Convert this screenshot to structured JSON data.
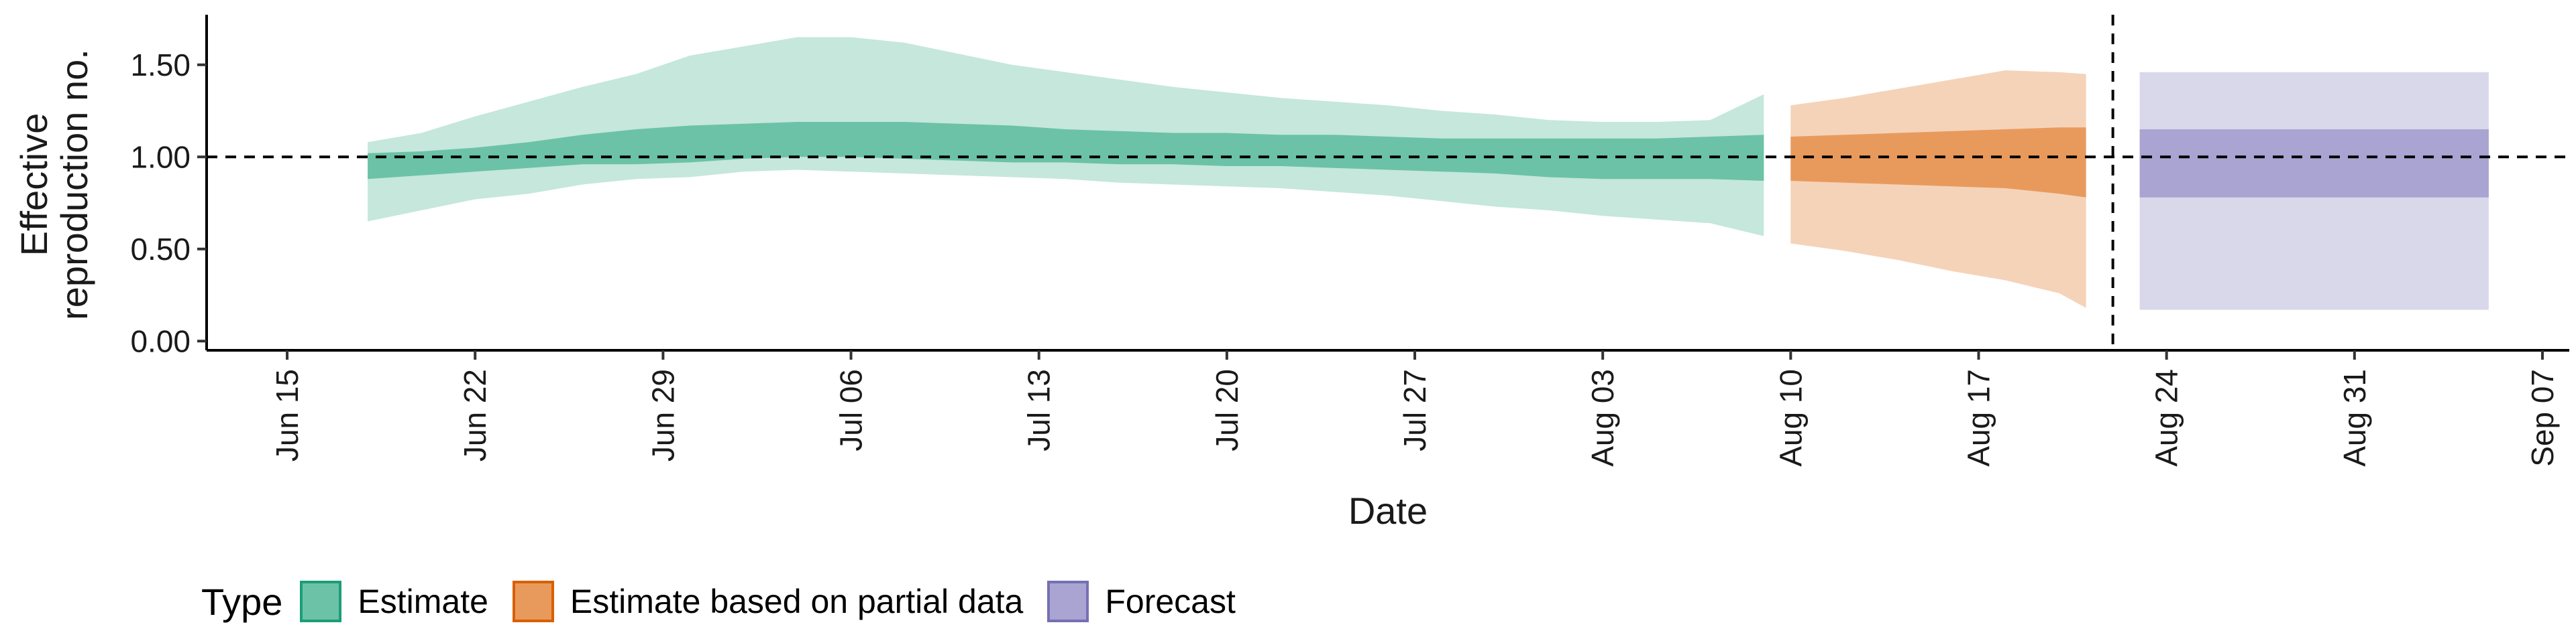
{
  "chart_data": {
    "type": "area",
    "xlabel": "Date",
    "ylabel": "Effective\nreproduction no.",
    "ylim": [
      -0.05,
      1.75
    ],
    "xlim": [
      "2020-06-12",
      "2020-09-08"
    ],
    "x_ticks": [
      "2020-06-15",
      "2020-06-22",
      "2020-06-29",
      "2020-07-06",
      "2020-07-13",
      "2020-07-20",
      "2020-07-27",
      "2020-08-03",
      "2020-08-10",
      "2020-08-17",
      "2020-08-24",
      "2020-08-31",
      "2020-09-07"
    ],
    "x_tick_labels": [
      "Jun 15",
      "Jun 22",
      "Jun 29",
      "Jul 06",
      "Jul 13",
      "Jul 20",
      "Jul 27",
      "Aug 03",
      "Aug 10",
      "Aug 17",
      "Aug 24",
      "Aug 31",
      "Sep 07"
    ],
    "y_ticks": [
      0,
      0.5,
      1,
      1.5
    ],
    "y_tick_labels": [
      "0.00",
      "0.50",
      "1.00",
      "1.50"
    ],
    "reference_lines": {
      "horizontal_y": 1.0,
      "vertical_x": "2020-08-22"
    },
    "grid": false,
    "legend": {
      "title": "Type",
      "position": "bottom",
      "entries": [
        {
          "label": "Estimate",
          "fill": "#6cc2a6",
          "border": "#1b9e77"
        },
        {
          "label": "Estimate based on partial data",
          "fill": "#e89a5d",
          "border": "#d95f02"
        },
        {
          "label": "Forecast",
          "fill": "#a9a4d2",
          "border": "#7570b3"
        }
      ]
    },
    "series": [
      {
        "name": "Estimate",
        "color": "#1b9e77",
        "inner_fill": "#6cc2a6",
        "outer_fill": "#c5e7dc",
        "x": [
          "2020-06-18",
          "2020-06-20",
          "2020-06-22",
          "2020-06-24",
          "2020-06-26",
          "2020-06-28",
          "2020-06-30",
          "2020-07-02",
          "2020-07-04",
          "2020-07-06",
          "2020-07-08",
          "2020-07-10",
          "2020-07-12",
          "2020-07-14",
          "2020-07-16",
          "2020-07-18",
          "2020-07-20",
          "2020-07-22",
          "2020-07-24",
          "2020-07-26",
          "2020-07-28",
          "2020-07-30",
          "2020-08-01",
          "2020-08-03",
          "2020-08-05",
          "2020-08-07",
          "2020-08-09"
        ],
        "outer_lower": [
          0.65,
          0.71,
          0.77,
          0.8,
          0.85,
          0.88,
          0.89,
          0.92,
          0.93,
          0.92,
          0.91,
          0.9,
          0.89,
          0.88,
          0.86,
          0.85,
          0.84,
          0.83,
          0.81,
          0.79,
          0.76,
          0.73,
          0.71,
          0.68,
          0.66,
          0.64,
          0.57
        ],
        "outer_upper": [
          1.08,
          1.13,
          1.22,
          1.3,
          1.38,
          1.45,
          1.55,
          1.6,
          1.65,
          1.65,
          1.62,
          1.56,
          1.5,
          1.46,
          1.42,
          1.38,
          1.35,
          1.32,
          1.3,
          1.28,
          1.25,
          1.23,
          1.2,
          1.19,
          1.19,
          1.2,
          1.34
        ],
        "inner_lower": [
          0.88,
          0.9,
          0.92,
          0.94,
          0.96,
          0.96,
          0.97,
          0.99,
          1.0,
          1.0,
          0.99,
          0.98,
          0.97,
          0.97,
          0.96,
          0.96,
          0.95,
          0.95,
          0.94,
          0.93,
          0.92,
          0.91,
          0.89,
          0.88,
          0.88,
          0.88,
          0.87
        ],
        "inner_upper": [
          1.02,
          1.03,
          1.05,
          1.08,
          1.12,
          1.15,
          1.17,
          1.18,
          1.19,
          1.19,
          1.19,
          1.18,
          1.17,
          1.15,
          1.14,
          1.13,
          1.13,
          1.12,
          1.12,
          1.11,
          1.1,
          1.1,
          1.1,
          1.1,
          1.1,
          1.11,
          1.12
        ]
      },
      {
        "name": "Estimate based on partial data",
        "color": "#d95f02",
        "inner_fill": "#e89a5d",
        "outer_fill": "#f5d3b9",
        "x": [
          "2020-08-10",
          "2020-08-12",
          "2020-08-14",
          "2020-08-16",
          "2020-08-18",
          "2020-08-20",
          "2020-08-21"
        ],
        "outer_lower": [
          0.53,
          0.49,
          0.44,
          0.38,
          0.33,
          0.26,
          0.18
        ],
        "outer_upper": [
          1.28,
          1.32,
          1.37,
          1.42,
          1.47,
          1.46,
          1.45
        ],
        "inner_lower": [
          0.87,
          0.86,
          0.85,
          0.84,
          0.83,
          0.8,
          0.78
        ],
        "inner_upper": [
          1.11,
          1.12,
          1.13,
          1.14,
          1.15,
          1.16,
          1.16
        ]
      },
      {
        "name": "Forecast",
        "color": "#7570b3",
        "inner_fill": "#a9a4d2",
        "outer_fill": "#d9d8ea",
        "x": [
          "2020-08-23",
          "2020-09-05"
        ],
        "outer_lower": [
          0.17,
          0.17
        ],
        "outer_upper": [
          1.46,
          1.46
        ],
        "inner_lower": [
          0.78,
          0.78
        ],
        "inner_upper": [
          1.15,
          1.15
        ]
      }
    ]
  }
}
